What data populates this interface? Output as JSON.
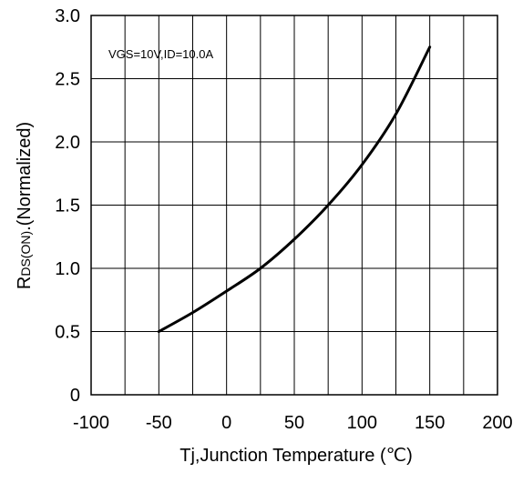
{
  "chart_data": {
    "type": "line",
    "xlabel": "Tj,Junction Temperature (℃)",
    "ylabel_main": "R",
    "ylabel_sub": "DS(ON)",
    "ylabel_rest": ".(Normalized)",
    "annotation": "VGS=10V,ID=10.0A",
    "xlim": [
      -100,
      200
    ],
    "ylim": [
      0,
      3.0
    ],
    "x_ticks": [
      -100,
      -50,
      0,
      50,
      100,
      150,
      200
    ],
    "x_tick_labels": [
      "-100",
      "-50",
      "0",
      "50",
      "100",
      "150",
      "200"
    ],
    "y_ticks": [
      0,
      0.5,
      1.0,
      1.5,
      2.0,
      2.5,
      3.0
    ],
    "y_tick_labels": [
      "0",
      "0.5",
      "1.0",
      "1.5",
      "2.0",
      "2.5",
      "3.0"
    ],
    "grid": true,
    "series": [
      {
        "x": [
          -50,
          -25,
          0,
          25,
          50,
          75,
          100,
          125,
          150
        ],
        "y": [
          0.5,
          0.65,
          0.82,
          1.0,
          1.23,
          1.5,
          1.82,
          2.22,
          2.75
        ],
        "color": "#000000"
      }
    ]
  }
}
